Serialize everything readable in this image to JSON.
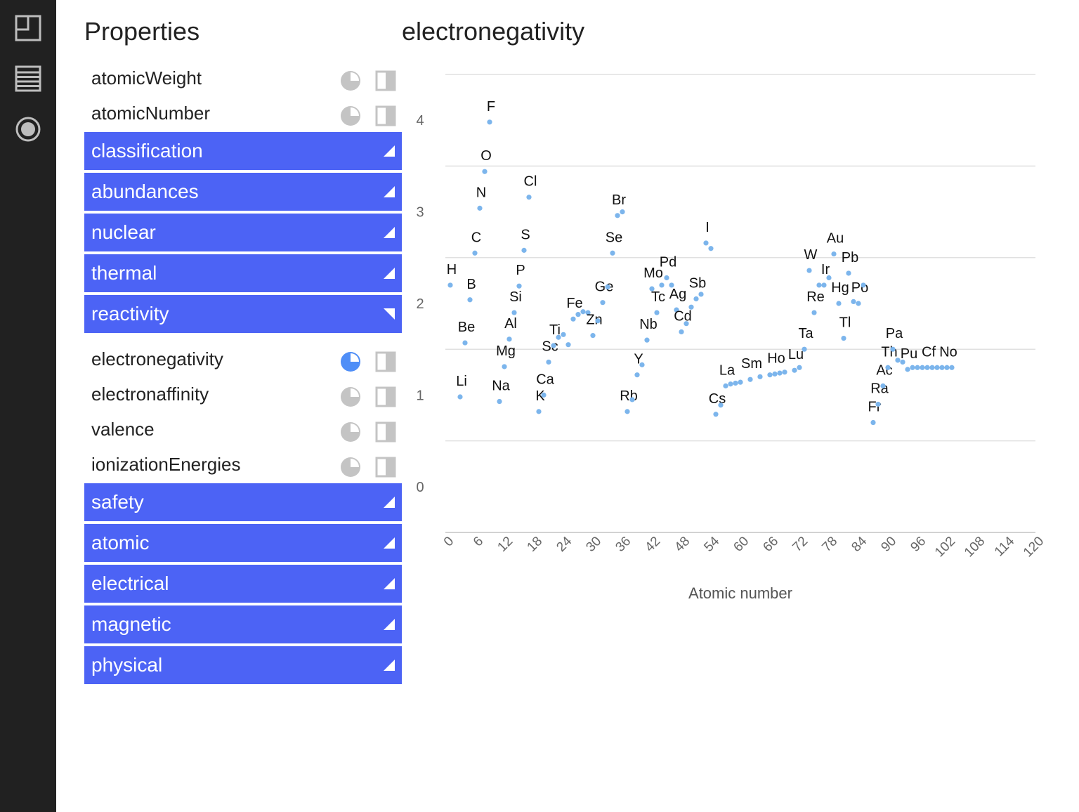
{
  "sidebar": {
    "icons": [
      "layout-icon",
      "table-icon",
      "record-icon"
    ]
  },
  "panel": {
    "title": "Properties",
    "top_properties": [
      "atomicWeight",
      "atomicNumber"
    ],
    "groups_before": [
      "classification",
      "abundances",
      "nuclear",
      "thermal"
    ],
    "open_group": "reactivity",
    "open_group_properties": [
      "electronegativity",
      "electronaffinity",
      "valence",
      "ionizationEnergies"
    ],
    "active_property": "electronegativity",
    "groups_after": [
      "safety",
      "atomic",
      "electrical",
      "magnetic",
      "physical"
    ]
  },
  "colors": {
    "group_bg": "#4c63f5",
    "point": "#7cb5ec",
    "active_icon": "#4f8ef7",
    "inactive_icon": "#c4c4c4"
  },
  "chart_data": {
    "type": "scatter",
    "title": "electronegativity",
    "xlabel": "Atomic number",
    "ylabel": "",
    "xlim": [
      0,
      120
    ],
    "ylim": [
      -0.5,
      4.5
    ],
    "xticks": [
      0,
      6,
      12,
      18,
      24,
      30,
      36,
      42,
      48,
      54,
      60,
      66,
      72,
      78,
      84,
      90,
      96,
      102,
      108,
      114,
      120
    ],
    "yticks": [
      0,
      1,
      2,
      3,
      4
    ],
    "grid": true,
    "points": [
      [
        1,
        2.2,
        "H"
      ],
      [
        3,
        0.98,
        "Li"
      ],
      [
        4,
        1.57,
        "Be"
      ],
      [
        5,
        2.04,
        "B"
      ],
      [
        6,
        2.55,
        "C"
      ],
      [
        7,
        3.04,
        "N"
      ],
      [
        8,
        3.44,
        "O"
      ],
      [
        9,
        3.98,
        "F"
      ],
      [
        11,
        0.93,
        "Na"
      ],
      [
        12,
        1.31,
        "Mg"
      ],
      [
        13,
        1.61,
        "Al"
      ],
      [
        14,
        1.9,
        "Si"
      ],
      [
        15,
        2.19,
        "P"
      ],
      [
        16,
        2.58,
        "S"
      ],
      [
        17,
        3.16,
        "Cl"
      ],
      [
        19,
        0.82,
        "K"
      ],
      [
        20,
        1.0,
        "Ca"
      ],
      [
        21,
        1.36,
        "Sc"
      ],
      [
        22,
        1.54,
        "Ti"
      ],
      [
        23,
        1.63,
        ""
      ],
      [
        24,
        1.66,
        ""
      ],
      [
        25,
        1.55,
        ""
      ],
      [
        26,
        1.83,
        "Fe"
      ],
      [
        27,
        1.88,
        ""
      ],
      [
        28,
        1.91,
        ""
      ],
      [
        29,
        1.9,
        ""
      ],
      [
        30,
        1.65,
        "Zn"
      ],
      [
        31,
        1.81,
        ""
      ],
      [
        32,
        2.01,
        "Ge"
      ],
      [
        33,
        2.18,
        ""
      ],
      [
        34,
        2.55,
        "Se"
      ],
      [
        35,
        2.96,
        "Br"
      ],
      [
        36,
        3.0,
        ""
      ],
      [
        37,
        0.82,
        "Rb"
      ],
      [
        38,
        0.95,
        ""
      ],
      [
        39,
        1.22,
        "Y"
      ],
      [
        40,
        1.33,
        ""
      ],
      [
        41,
        1.6,
        "Nb"
      ],
      [
        42,
        2.16,
        "Mo"
      ],
      [
        43,
        1.9,
        "Tc"
      ],
      [
        44,
        2.2,
        ""
      ],
      [
        45,
        2.28,
        "Pd"
      ],
      [
        46,
        2.2,
        ""
      ],
      [
        47,
        1.93,
        "Ag"
      ],
      [
        48,
        1.69,
        "Cd"
      ],
      [
        49,
        1.78,
        ""
      ],
      [
        50,
        1.96,
        ""
      ],
      [
        51,
        2.05,
        "Sb"
      ],
      [
        52,
        2.1,
        ""
      ],
      [
        53,
        2.66,
        "I"
      ],
      [
        54,
        2.6,
        ""
      ],
      [
        55,
        0.79,
        "Cs"
      ],
      [
        56,
        0.89,
        ""
      ],
      [
        57,
        1.1,
        "La"
      ],
      [
        58,
        1.12,
        ""
      ],
      [
        59,
        1.13,
        ""
      ],
      [
        60,
        1.14,
        ""
      ],
      [
        62,
        1.17,
        "Sm"
      ],
      [
        64,
        1.2,
        ""
      ],
      [
        66,
        1.22,
        ""
      ],
      [
        67,
        1.23,
        "Ho"
      ],
      [
        68,
        1.24,
        ""
      ],
      [
        69,
        1.25,
        ""
      ],
      [
        71,
        1.27,
        "Lu"
      ],
      [
        72,
        1.3,
        ""
      ],
      [
        73,
        1.5,
        "Ta"
      ],
      [
        74,
        2.36,
        "W"
      ],
      [
        75,
        1.9,
        "Re"
      ],
      [
        76,
        2.2,
        ""
      ],
      [
        77,
        2.2,
        "Ir"
      ],
      [
        78,
        2.28,
        ""
      ],
      [
        79,
        2.54,
        "Au"
      ],
      [
        80,
        2.0,
        "Hg"
      ],
      [
        81,
        1.62,
        "Tl"
      ],
      [
        82,
        2.33,
        "Pb"
      ],
      [
        83,
        2.02,
        ""
      ],
      [
        84,
        2.0,
        "Po"
      ],
      [
        85,
        2.2,
        ""
      ],
      [
        87,
        0.7,
        "Fr"
      ],
      [
        88,
        0.9,
        "Ra"
      ],
      [
        89,
        1.1,
        "Ac"
      ],
      [
        90,
        1.3,
        "Th"
      ],
      [
        91,
        1.5,
        "Pa"
      ],
      [
        92,
        1.38,
        ""
      ],
      [
        93,
        1.36,
        ""
      ],
      [
        94,
        1.28,
        "Pu"
      ],
      [
        95,
        1.3,
        ""
      ],
      [
        96,
        1.3,
        ""
      ],
      [
        97,
        1.3,
        ""
      ],
      [
        98,
        1.3,
        "Cf"
      ],
      [
        99,
        1.3,
        ""
      ],
      [
        100,
        1.3,
        ""
      ],
      [
        101,
        1.3,
        ""
      ],
      [
        102,
        1.3,
        "No"
      ],
      [
        103,
        1.3,
        ""
      ]
    ]
  }
}
